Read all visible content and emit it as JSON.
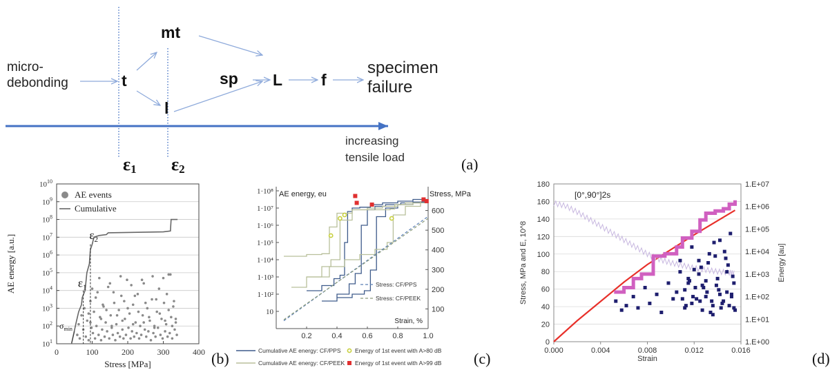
{
  "panel_labels": {
    "a": "(a)",
    "b": "(b)",
    "c": "(c)",
    "d": "(d)"
  },
  "diagram_a": {
    "nodes": {
      "start": [
        "micro-",
        "debonding"
      ],
      "t": "t",
      "mt": "mt",
      "l": "l",
      "sp": "sp",
      "L": "L",
      "f": "f",
      "end": [
        "specimen",
        "failure"
      ]
    },
    "load_axis_label": [
      "increasing",
      "tensile load"
    ],
    "eps1": "ε",
    "eps1_sub": "1",
    "eps2": "ε",
    "eps2_sub": "2",
    "colors": {
      "arrow": "#8eaadb",
      "axis": "#4472c4",
      "dotted": "#4472c4"
    }
  },
  "chart_data": [
    {
      "id": "b",
      "type": "scatter",
      "xlabel": "Stress [MPa]",
      "ylabel": "AE energy [a.u.]",
      "xlim": [
        0,
        400
      ],
      "ylim_log10": [
        1,
        10
      ],
      "x_ticks": [
        "0",
        "100",
        "200",
        "300",
        "400"
      ],
      "y_ticks_exp": [
        "1",
        "2",
        "3",
        "4",
        "5",
        "6",
        "7",
        "8",
        "9",
        "10"
      ],
      "y_tick_base": "10",
      "legend": [
        "AE events",
        "Cumulative"
      ],
      "annotations": {
        "eps1": "ε",
        "eps1_sub": "1",
        "eps2": "ε",
        "eps2_sub": "2",
        "sigma": "σ",
        "sigma_sub": "min"
      },
      "series": [
        {
          "name": "Cumulative",
          "x": [
            42,
            55,
            62,
            70,
            72,
            80,
            85,
            92,
            95,
            100,
            105,
            120,
            140,
            145,
            300,
            320,
            322,
            340
          ],
          "y_log10": [
            1.0,
            2.2,
            2.8,
            3.2,
            3.6,
            4.0,
            5.0,
            5.5,
            6.3,
            6.6,
            7.0,
            7.1,
            7.15,
            7.25,
            7.3,
            7.35,
            8.0,
            8.0
          ]
        },
        {
          "name": "AE events",
          "x": [
            58,
            62,
            65,
            70,
            75,
            78,
            82,
            86,
            90,
            95,
            98,
            102,
            105,
            108,
            112,
            115,
            118,
            122,
            125,
            128,
            132,
            135,
            138,
            142,
            145,
            148,
            152,
            155,
            158,
            162,
            165,
            168,
            172,
            175,
            178,
            182,
            185,
            188,
            192,
            195,
            198,
            202,
            205,
            208,
            212,
            215,
            218,
            222,
            225,
            228,
            232,
            235,
            238,
            242,
            245,
            248,
            252,
            255,
            258,
            262,
            265,
            268,
            272,
            275,
            278,
            282,
            285,
            288,
            292,
            295,
            298,
            302,
            305,
            308,
            312,
            315,
            318,
            322,
            325,
            328,
            332,
            335,
            338,
            100,
            120,
            150,
            180,
            210,
            240,
            270,
            300,
            320,
            110,
            130,
            160,
            190,
            220,
            250,
            280,
            310,
            330,
            90,
            140,
            170,
            200,
            230,
            260,
            290,
            315,
            335,
            95,
            125,
            155,
            185,
            215,
            245,
            275,
            305,
            325
          ],
          "y_log10": [
            1.5,
            2.1,
            1.3,
            2.6,
            1.8,
            3.0,
            1.4,
            2.3,
            1.2,
            3.4,
            1.9,
            1.6,
            2.8,
            1.3,
            2.0,
            3.9,
            1.5,
            2.5,
            1.2,
            1.8,
            3.1,
            1.4,
            2.2,
            1.7,
            4.2,
            1.3,
            2.6,
            1.9,
            1.5,
            3.3,
            1.2,
            2.1,
            1.6,
            2.9,
            1.4,
            3.7,
            1.8,
            1.3,
            2.4,
            1.5,
            4.6,
            1.9,
            2.7,
            1.3,
            1.7,
            3.2,
            1.4,
            2.2,
            1.6,
            3.8,
            1.3,
            2.0,
            1.5,
            2.6,
            4.4,
            1.8,
            1.4,
            3.0,
            1.7,
            2.3,
            1.2,
            3.5,
            1.6,
            2.0,
            1.4,
            2.8,
            1.9,
            4.1,
            1.5,
            2.4,
            1.3,
            3.3,
            1.7,
            2.1,
            1.4,
            4.9,
            1.6,
            2.5,
            1.3,
            3.1,
            1.8,
            2.2,
            1.5,
            4.1,
            4.7,
            4.4,
            4.8,
            4.3,
            4.6,
            4.8,
            4.7,
            4.9,
            3.6,
            3.2,
            3.9,
            3.4,
            3.7,
            3.3,
            3.5,
            3.8,
            3.4,
            2.7,
            2.9,
            2.6,
            3.0,
            2.8,
            2.5,
            2.7,
            2.9,
            2.4,
            2.2,
            2.4,
            2.0,
            2.3,
            2.1,
            2.2,
            1.9,
            2.3,
            2.0
          ]
        }
      ]
    },
    {
      "id": "c",
      "type": "line",
      "xlabel": "Strain, %",
      "ylabel_left": "AE energy, eu",
      "ylabel_right": "Stress, MPa",
      "xlim": [
        0,
        1.0
      ],
      "ylim_left_log10": [
        0,
        8
      ],
      "ylim_right": [
        0,
        700
      ],
      "x_ticks": [
        "0.2",
        "0.4",
        "0.6",
        "0.8",
        "1.0"
      ],
      "y_left_ticks": [
        "10",
        "1·10²",
        "1·10³",
        "1·10⁴",
        "1·10⁵",
        "1·10⁶",
        "1·10⁷",
        "1·10⁸"
      ],
      "y_right_ticks": [
        "100",
        "200",
        "300",
        "400",
        "500",
        "600"
      ],
      "inner_legend": [
        "Stress: CF/PPS",
        "Stress: CF/PEEK"
      ],
      "legend": [
        "Cumulative AE energy: CF/PPS",
        "Energy of 1st event with A>80 dB",
        "Cumulative AE energy: CF/PEEK",
        "Energy of 1st event with A>99 dB"
      ],
      "colors": {
        "pps": "#3d5a8a",
        "peek": "#b8bf9a",
        "pps_stress": "#5b7fb5",
        "peek_stress": "#8a9a7a",
        "marker80": "#c8d040",
        "marker99": "#e03030"
      },
      "series": [
        {
          "name": "Cumulative AE energy: CF/PPS",
          "x": [
            0.2,
            0.3,
            0.38,
            0.42,
            0.45,
            0.47,
            0.5,
            0.55,
            0.62,
            0.7,
            0.8,
            0.9,
            1.0
          ],
          "y_log10": [
            2.2,
            2.5,
            2.9,
            3.1,
            5.0,
            6.8,
            7.0,
            7.05,
            7.2,
            7.3,
            7.4,
            7.5,
            7.5
          ]
        },
        {
          "name": "Cumulative AE energy: CF/PPS",
          "x": [
            0.3,
            0.4,
            0.48,
            0.52,
            0.56,
            0.6,
            0.65,
            0.72,
            0.82,
            0.95
          ],
          "y_log10": [
            1.6,
            2.0,
            2.6,
            3.2,
            6.0,
            6.9,
            7.1,
            7.2,
            7.3,
            7.4
          ]
        },
        {
          "name": "Cumulative AE energy: CF/PPS",
          "x": [
            0.4,
            0.5,
            0.58,
            0.62,
            0.66,
            0.72,
            0.8,
            0.9,
            0.98
          ],
          "y_log10": [
            1.8,
            2.0,
            2.2,
            3.4,
            6.5,
            7.0,
            7.2,
            7.35,
            7.4
          ]
        },
        {
          "name": "Cumulative AE energy: CF/PEEK",
          "x": [
            0.05,
            0.2,
            0.3,
            0.35,
            0.4,
            0.5,
            0.6,
            0.7,
            0.8,
            0.9,
            1.0
          ],
          "y_log10": [
            4.2,
            4.3,
            4.35,
            5.9,
            6.7,
            6.9,
            7.0,
            7.1,
            7.2,
            7.3,
            7.4
          ]
        },
        {
          "name": "Cumulative AE energy: CF/PEEK",
          "x": [
            0.1,
            0.2,
            0.3,
            0.36,
            0.42,
            0.5,
            0.6,
            0.75,
            0.78,
            0.85,
            0.95
          ],
          "y_log10": [
            2.4,
            3.0,
            3.6,
            4.0,
            6.3,
            6.9,
            6.9,
            6.95,
            7.2,
            7.3,
            7.4
          ]
        },
        {
          "name": "Cumulative AE energy: CF/PEEK",
          "x": [
            0.2,
            0.35,
            0.45,
            0.55,
            0.65,
            0.73,
            0.77,
            0.85,
            0.95
          ],
          "y_log10": [
            3.0,
            3.6,
            4.0,
            4.3,
            4.6,
            5.0,
            6.6,
            7.1,
            7.3
          ]
        },
        {
          "name": "Stress: CF/PPS",
          "x": [
            0.05,
            1.0
          ],
          "y": [
            40,
            570
          ]
        },
        {
          "name": "Stress: CF/PEEK",
          "x": [
            0.05,
            1.0
          ],
          "y": [
            45,
            560
          ]
        },
        {
          "name": "Energy of 1st event with A>80 dB",
          "x": [
            0.36,
            0.42,
            0.45,
            0.76
          ],
          "y_log10": [
            5.4,
            6.4,
            6.6,
            6.4
          ]
        },
        {
          "name": "Energy of 1st event with A>99 dB",
          "x": [
            0.52,
            0.53,
            0.63,
            0.97,
            0.99
          ],
          "y_log10": [
            7.7,
            7.3,
            7.2,
            7.5,
            7.4
          ]
        }
      ]
    },
    {
      "id": "d",
      "type": "scatter",
      "annotation": "[0°,90°]2s",
      "xlabel": "Strain",
      "ylabel_left": "Stress, MPa and E, 10^8",
      "ylabel_right": "Energy [au]",
      "xlim": [
        0,
        0.016
      ],
      "ylim_left": [
        0,
        180
      ],
      "ylim_right_log10": [
        0,
        7
      ],
      "x_ticks": [
        "0.000",
        "0.004",
        "0.008",
        "0.012",
        "0.016"
      ],
      "y_left_ticks": [
        "0",
        "20",
        "40",
        "60",
        "80",
        "100",
        "120",
        "140",
        "160",
        "180"
      ],
      "y_right_ticks": [
        "1.E+00",
        "1.E+01",
        "1.E+02",
        "1.E+03",
        "1.E+04",
        "1.E+05",
        "1.E+06",
        "1.E+07"
      ],
      "colors": {
        "stress": "#e8302a",
        "modulus": "#c8b8e0",
        "cumulative": "#d060c0",
        "events": "#1e1e6e"
      },
      "series": [
        {
          "name": "stress",
          "x": [
            0.0,
            0.002,
            0.004,
            0.006,
            0.008,
            0.01,
            0.012,
            0.014,
            0.0155
          ],
          "y": [
            0,
            24,
            46,
            68,
            88,
            105,
            122,
            138,
            150
          ]
        },
        {
          "name": "modulus",
          "x": [
            0.0,
            0.001,
            0.002,
            0.003,
            0.004,
            0.005,
            0.006,
            0.007,
            0.008,
            0.009,
            0.01,
            0.011,
            0.012,
            0.013,
            0.014,
            0.015,
            0.0155
          ],
          "y": [
            158,
            155,
            148,
            140,
            132,
            124,
            116,
            108,
            100,
            94,
            90,
            87,
            84,
            82,
            80,
            79,
            78
          ]
        },
        {
          "name": "cumulative",
          "x": [
            0.0053,
            0.006,
            0.0068,
            0.0075,
            0.008,
            0.0085,
            0.0095,
            0.0105,
            0.011,
            0.0118,
            0.0125,
            0.013,
            0.0138,
            0.0145,
            0.015,
            0.0155
          ],
          "y_log10": [
            2.2,
            2.4,
            2.8,
            3.0,
            3.0,
            3.8,
            3.9,
            4.2,
            4.6,
            4.9,
            5.4,
            5.7,
            5.8,
            5.9,
            6.1,
            6.2
          ]
        },
        {
          "name": "events",
          "x": [
            0.0053,
            0.0058,
            0.0062,
            0.0068,
            0.0072,
            0.0078,
            0.0082,
            0.0088,
            0.0092,
            0.0098,
            0.0102,
            0.0105,
            0.0108,
            0.0112,
            0.0115,
            0.0118,
            0.0121,
            0.0124,
            0.0127,
            0.013,
            0.0133,
            0.0136,
            0.0139,
            0.0142,
            0.0145,
            0.0148,
            0.0151,
            0.0154,
            0.0108,
            0.0112,
            0.0118,
            0.0122,
            0.0126,
            0.013,
            0.0134,
            0.0138,
            0.0142,
            0.0146,
            0.015,
            0.0153,
            0.0115,
            0.012,
            0.0125,
            0.0128,
            0.0132,
            0.0136,
            0.014,
            0.0144,
            0.0148,
            0.0152,
            0.0155,
            0.011,
            0.0116,
            0.0124,
            0.0131,
            0.0137,
            0.0143,
            0.0149,
            0.0154,
            0.0113,
            0.0119,
            0.0127,
            0.0135,
            0.0141,
            0.0147,
            0.0152
          ],
          "y_log10": [
            1.8,
            1.4,
            1.6,
            2.0,
            1.5,
            2.4,
            1.7,
            2.1,
            1.3,
            2.6,
            1.9,
            2.2,
            3.1,
            1.5,
            2.8,
            1.7,
            2.4,
            3.6,
            1.4,
            2.0,
            3.9,
            1.6,
            2.5,
            4.5,
            1.8,
            2.2,
            4.8,
            1.5,
            3.6,
            2.3,
            4.2,
            1.9,
            3.3,
            2.7,
            1.3,
            3.8,
            2.1,
            4.0,
            1.6,
            2.9,
            2.6,
            3.2,
            1.8,
            2.4,
            3.5,
            1.2,
            2.8,
            1.7,
            3.1,
            2.0,
            1.4,
            1.9,
            2.7,
            3.0,
            2.2,
            4.4,
            1.5,
            3.4,
            2.6,
            1.6,
            2.0,
            2.5,
            1.8,
            2.3,
            3.7,
            2.1
          ]
        }
      ]
    }
  ]
}
